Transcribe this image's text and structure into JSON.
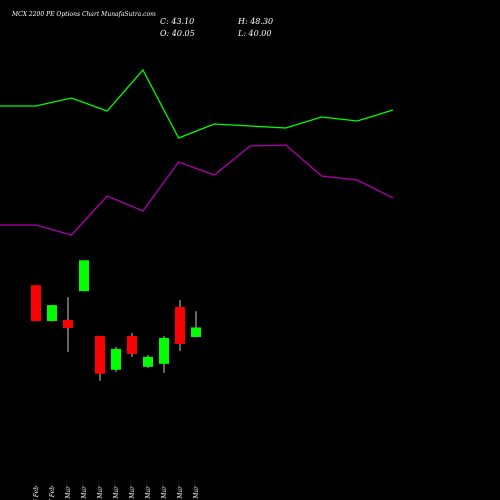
{
  "chart_data": [
    {
      "type": "candlestick",
      "title": "MCX 2200 PE Options Chart MunafaSutra.com",
      "ohlc_labels": [
        "C: 43.10",
        "H: 48.30",
        "O: 40.05",
        "L: 40.00"
      ],
      "categories": [
        "26 Feb",
        "27 Feb",
        "02 Mar",
        "04 Mar",
        "05 Mar",
        "06 Mar",
        "09 Mar",
        "10 Mar",
        "11 Mar",
        "12 Mar",
        "13 Mar"
      ],
      "open": [
        56.69,
        45.17,
        45.49,
        54.77,
        40.37,
        29.49,
        40.37,
        30.45,
        31.41,
        49.65,
        40.05
      ],
      "high": [
        56.69,
        50.29,
        52.85,
        64.69,
        40.37,
        36.85,
        41.33,
        34.29,
        40.37,
        51.89,
        48.3
      ],
      "low": [
        45.17,
        45.17,
        35.25,
        54.77,
        25.97,
        28.85,
        33.65,
        30.13,
        28.53,
        35.57,
        40.0
      ],
      "close": [
        45.17,
        50.29,
        42.93,
        64.69,
        28.21,
        36.21,
        34.61,
        33.65,
        39.73,
        37.81,
        43.1
      ],
      "up_color": "#00ff00",
      "down_color": "#ff0000",
      "ylim": [
        23,
        68
      ]
    },
    {
      "type": "line",
      "series": [
        {
          "color": "#00ff00",
          "values": [
            394,
            394,
            402,
            389,
            430,
            362,
            376,
            374,
            372,
            383,
            379,
            390
          ]
        },
        {
          "color": "#b000b0",
          "values": [
            275,
            275,
            265,
            304,
            289,
            338,
            325,
            354,
            355,
            324,
            320,
            302
          ]
        }
      ],
      "ylim": [
        250,
        450
      ]
    }
  ]
}
